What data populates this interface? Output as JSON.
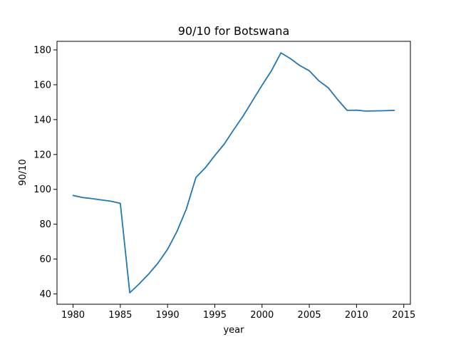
{
  "chart_data": {
    "type": "line",
    "title": "90/10 for Botswana",
    "xlabel": "year",
    "ylabel": "90/10",
    "xlim": [
      1978.3,
      2015.7
    ],
    "ylim": [
      34.1,
      184.9
    ],
    "xticks": [
      1980,
      1985,
      1990,
      1995,
      2000,
      2005,
      2010,
      2015
    ],
    "yticks": [
      40,
      60,
      80,
      100,
      120,
      140,
      160,
      180
    ],
    "grid": false,
    "line_color": "#1f77b4",
    "series": [
      {
        "x": [
          1980,
          1981,
          1982,
          1983,
          1984,
          1985,
          1986,
          1987,
          1988,
          1989,
          1990,
          1991,
          1992,
          1993,
          1994,
          1995,
          1996,
          1997,
          1998,
          1999,
          2000,
          2001,
          2002,
          2003,
          2004,
          2005,
          2006,
          2007,
          2008,
          2009,
          2010,
          2011,
          2012,
          2013,
          2014
        ],
        "values": [
          96.5,
          95.3,
          94.7,
          93.9,
          93.2,
          92.0,
          40.7,
          45.8,
          51.4,
          57.8,
          65.6,
          75.9,
          88.9,
          106.8,
          112.4,
          119.4,
          126.0,
          134.2,
          142.1,
          150.9,
          159.7,
          168.1,
          178.3,
          175.0,
          171.0,
          168.0,
          162.3,
          158.3,
          151.5,
          145.3,
          145.4,
          144.9,
          145.0,
          145.1,
          145.3
        ]
      }
    ]
  }
}
